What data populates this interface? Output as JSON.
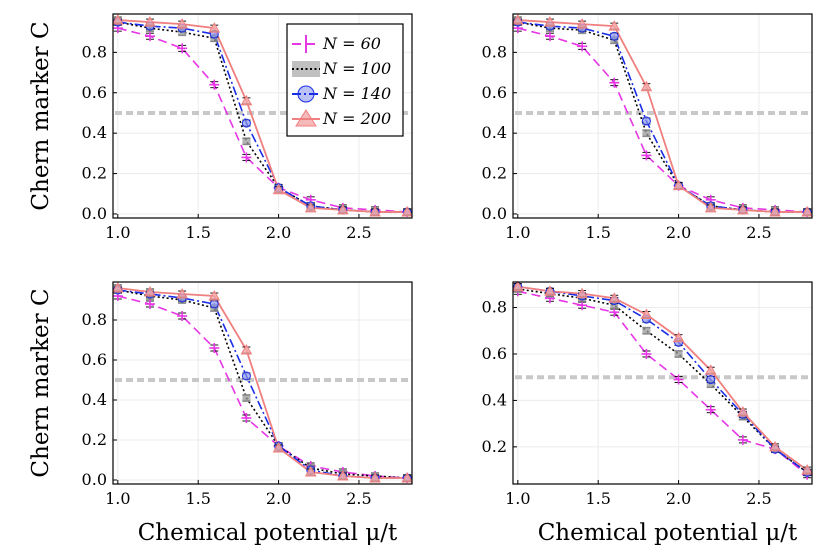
{
  "chart_data": [
    {
      "type": "line",
      "panel": "top-left",
      "ylabel": "Chern marker C",
      "xlabel": "",
      "xlim": [
        0.97,
        2.83
      ],
      "ylim": [
        -0.02,
        0.99
      ],
      "xticks": [
        "1.0",
        "1.5",
        "2.0",
        "2.5"
      ],
      "yticks": [
        "0.0",
        "0.2",
        "0.4",
        "0.6",
        "0.8"
      ],
      "x": [
        1.0,
        1.2,
        1.4,
        1.6,
        1.8,
        2.0,
        2.2,
        2.4,
        2.6,
        2.8
      ],
      "reference_line": 0.5,
      "legend": "top-right",
      "series": [
        {
          "name": "N = 60",
          "values": [
            0.92,
            0.88,
            0.82,
            0.64,
            0.28,
            0.13,
            0.07,
            0.03,
            0.02,
            0.01
          ]
        },
        {
          "name": "N = 100",
          "values": [
            0.95,
            0.92,
            0.9,
            0.87,
            0.36,
            0.13,
            0.04,
            0.02,
            0.01,
            0.01
          ]
        },
        {
          "name": "N = 140",
          "values": [
            0.95,
            0.93,
            0.92,
            0.89,
            0.45,
            0.13,
            0.04,
            0.02,
            0.01,
            0.01
          ]
        },
        {
          "name": "N = 200",
          "values": [
            0.96,
            0.95,
            0.94,
            0.92,
            0.56,
            0.12,
            0.03,
            0.02,
            0.01,
            0.01
          ]
        }
      ]
    },
    {
      "type": "line",
      "panel": "top-right",
      "ylabel": "",
      "xlabel": "",
      "xlim": [
        0.97,
        2.83
      ],
      "ylim": [
        -0.02,
        0.99
      ],
      "xticks": [
        "1.0",
        "1.5",
        "2.0",
        "2.5"
      ],
      "yticks": [
        "0.0",
        "0.2",
        "0.4",
        "0.6",
        "0.8"
      ],
      "x": [
        1.0,
        1.2,
        1.4,
        1.6,
        1.8,
        2.0,
        2.2,
        2.4,
        2.6,
        2.8
      ],
      "reference_line": 0.5,
      "series": [
        {
          "name": "N = 60",
          "values": [
            0.92,
            0.88,
            0.83,
            0.65,
            0.29,
            0.14,
            0.07,
            0.03,
            0.02,
            0.01
          ]
        },
        {
          "name": "N = 100",
          "values": [
            0.95,
            0.92,
            0.91,
            0.86,
            0.4,
            0.14,
            0.04,
            0.02,
            0.01,
            0.01
          ]
        },
        {
          "name": "N = 140",
          "values": [
            0.95,
            0.93,
            0.92,
            0.88,
            0.46,
            0.14,
            0.04,
            0.02,
            0.01,
            0.01
          ]
        },
        {
          "name": "N = 200",
          "values": [
            0.96,
            0.95,
            0.94,
            0.93,
            0.63,
            0.14,
            0.03,
            0.02,
            0.01,
            0.01
          ]
        }
      ]
    },
    {
      "type": "line",
      "panel": "bottom-left",
      "ylabel": "Chern marker C",
      "xlabel": "Chemical potential μ/t",
      "xlim": [
        0.97,
        2.83
      ],
      "ylim": [
        -0.02,
        0.99
      ],
      "xticks": [
        "1.0",
        "1.5",
        "2.0",
        "2.5"
      ],
      "yticks": [
        "0.0",
        "0.2",
        "0.4",
        "0.6",
        "0.8"
      ],
      "x": [
        1.0,
        1.2,
        1.4,
        1.6,
        1.8,
        2.0,
        2.2,
        2.4,
        2.6,
        2.8
      ],
      "reference_line": 0.5,
      "series": [
        {
          "name": "N = 60",
          "values": [
            0.92,
            0.88,
            0.82,
            0.66,
            0.31,
            0.17,
            0.07,
            0.04,
            0.02,
            0.01
          ]
        },
        {
          "name": "N = 100",
          "values": [
            0.95,
            0.92,
            0.9,
            0.86,
            0.41,
            0.17,
            0.06,
            0.03,
            0.02,
            0.01
          ]
        },
        {
          "name": "N = 140",
          "values": [
            0.95,
            0.93,
            0.91,
            0.88,
            0.52,
            0.17,
            0.05,
            0.02,
            0.01,
            0.01
          ]
        },
        {
          "name": "N = 200",
          "values": [
            0.96,
            0.94,
            0.93,
            0.92,
            0.65,
            0.16,
            0.04,
            0.02,
            0.01,
            0.01
          ]
        }
      ]
    },
    {
      "type": "line",
      "panel": "bottom-right",
      "ylabel": "",
      "xlabel": "Chemical potential μ/t",
      "xlim": [
        0.97,
        2.83
      ],
      "ylim": [
        0.04,
        0.91
      ],
      "xticks": [
        "1.0",
        "1.5",
        "2.0",
        "2.5"
      ],
      "yticks": [
        "0.2",
        "0.4",
        "0.6",
        "0.8"
      ],
      "x": [
        1.0,
        1.2,
        1.4,
        1.6,
        1.8,
        2.0,
        2.2,
        2.4,
        2.6,
        2.8
      ],
      "reference_line": 0.5,
      "series": [
        {
          "name": "N = 60",
          "values": [
            0.87,
            0.84,
            0.81,
            0.78,
            0.6,
            0.49,
            0.36,
            0.23,
            0.19,
            0.08
          ]
        },
        {
          "name": "N = 100",
          "values": [
            0.88,
            0.86,
            0.84,
            0.81,
            0.7,
            0.6,
            0.47,
            0.33,
            0.19,
            0.09
          ]
        },
        {
          "name": "N = 140",
          "values": [
            0.89,
            0.87,
            0.85,
            0.83,
            0.75,
            0.65,
            0.49,
            0.34,
            0.19,
            0.09
          ]
        },
        {
          "name": "N = 200",
          "values": [
            0.89,
            0.87,
            0.86,
            0.84,
            0.77,
            0.67,
            0.53,
            0.35,
            0.2,
            0.1
          ]
        }
      ]
    }
  ],
  "legend": {
    "entries": [
      "N = 60",
      "N = 100",
      "N = 140",
      "N = 200"
    ]
  },
  "colors": {
    "n60": "#e636e6",
    "n100": "#000000",
    "n140": "#1a2ee6",
    "n200": "#f07f7f",
    "reference": "#c8c8c8",
    "grid": "#ececec"
  }
}
